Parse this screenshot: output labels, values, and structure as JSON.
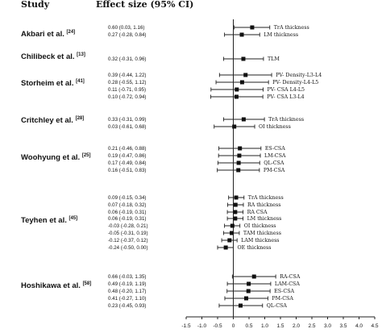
{
  "chart_data": {
    "type": "forest",
    "header_study": "Study",
    "header_effect": "Effect size (95% CI)",
    "xlim": [
      -1.5,
      4.5
    ],
    "ticks": [
      -1.5,
      -1,
      -0.5,
      0,
      0.5,
      1,
      1.5,
      2,
      2.5,
      3,
      3.5,
      4,
      4.5
    ],
    "tick_labels": [
      "-1.5",
      "-1.0",
      "-0.5",
      "0",
      "0.5",
      "1.0",
      "1.5",
      "2.0",
      "2.5",
      "3.0",
      "3.5",
      "4.0",
      "4.5"
    ],
    "studies": [
      {
        "name": "Akbari et al.",
        "ref": "[24]",
        "rows": [
          {
            "effect": 0.6,
            "low": 0.03,
            "high": 1.16,
            "text": "0.60 (0.03, 1.16)",
            "label": "TrA thickness"
          },
          {
            "effect": 0.27,
            "low": -0.28,
            "high": 0.84,
            "text": "0.27 (-0.28, 0.84)",
            "label": "LM thickness"
          }
        ]
      },
      {
        "name": "Chilibeck et al.",
        "ref": "[13]",
        "rows": [
          {
            "effect": 0.32,
            "low": -0.31,
            "high": 0.96,
            "text": "0.32 (-0.31, 0.96)",
            "label": "TLM"
          }
        ]
      },
      {
        "name": "Storheim et al.",
        "ref": "[41]",
        "rows": [
          {
            "effect": 0.39,
            "low": -0.44,
            "high": 1.22,
            "text": "0.39 (-0.44, 1.22)",
            "label": "PV- Density-L3-L4"
          },
          {
            "effect": 0.28,
            "low": -0.55,
            "high": 1.12,
            "text": "0.28 (-0.55, 1.12)",
            "label": "PV- Density-L4-L5"
          },
          {
            "effect": 0.11,
            "low": -0.71,
            "high": 0.95,
            "text": "0.11 (-0.71, 0.95)",
            "label": "PV- CSA L4-L5"
          },
          {
            "effect": 0.1,
            "low": -0.72,
            "high": 0.94,
            "text": "0.10 (-0.72, 0.94)",
            "label": "PV- CSA L3-L4"
          }
        ]
      },
      {
        "name": "Critchley et al.",
        "ref": "[28]",
        "rows": [
          {
            "effect": 0.33,
            "low": -0.31,
            "high": 0.99,
            "text": "0.33 (-0.31, 0.99)",
            "label": "TrA thickness"
          },
          {
            "effect": 0.03,
            "low": -0.61,
            "high": 0.68,
            "text": "0.03 (-0.61, 0.68)",
            "label": "OI thickness"
          }
        ]
      },
      {
        "name": "Woohyung et al.",
        "ref": "[25]",
        "rows": [
          {
            "effect": 0.21,
            "low": -0.46,
            "high": 0.88,
            "text": "0.21 (-0.46, 0.88)",
            "label": "ES-CSA"
          },
          {
            "effect": 0.19,
            "low": -0.47,
            "high": 0.86,
            "text": "0.19 (-0.47, 0.86)",
            "label": "LM-CSA"
          },
          {
            "effect": 0.17,
            "low": -0.49,
            "high": 0.84,
            "text": "0.17 (-0.49, 0.84)",
            "label": "QL-CSA"
          },
          {
            "effect": 0.16,
            "low": -0.51,
            "high": 0.83,
            "text": "0.16 (-0.51, 0.83)",
            "label": "PM-CSA"
          }
        ]
      },
      {
        "name": "Teyhen et al.",
        "ref": "[45]",
        "rows": [
          {
            "effect": 0.09,
            "low": -0.15,
            "high": 0.34,
            "text": "0.09 (-0.15, 0.34)",
            "label": "TrA thickness"
          },
          {
            "effect": 0.07,
            "low": -0.18,
            "high": 0.32,
            "text": "0.07 (-0.18, 0.32)",
            "label": "RA thickness"
          },
          {
            "effect": 0.06,
            "low": -0.19,
            "high": 0.31,
            "text": "0.06 (-0.19, 0.31)",
            "label": "RA CSA"
          },
          {
            "effect": 0.06,
            "low": -0.19,
            "high": 0.31,
            "text": "0.06 (-0.19, 0.31)",
            "label": "LM thickness"
          },
          {
            "effect": -0.03,
            "low": -0.28,
            "high": 0.21,
            "text": "-0.03 (-0.28, 0.21)",
            "label": "OI thickness"
          },
          {
            "effect": -0.05,
            "low": -0.31,
            "high": 0.19,
            "text": "-0.05 (-0.31, 0.19)",
            "label": "TAM thickness"
          },
          {
            "effect": -0.12,
            "low": -0.37,
            "high": 0.12,
            "text": "-0.12 (-0.37, 0.12)",
            "label": "LAM thickness"
          },
          {
            "effect": -0.24,
            "low": -0.5,
            "high": 0.0,
            "text": "-0.24 (-0.50, 0.00)",
            "label": "OE thickness"
          }
        ]
      },
      {
        "name": "Hoshikawa et al.",
        "ref": "[58]",
        "rows": [
          {
            "effect": 0.66,
            "low": -0.03,
            "high": 1.35,
            "text": "0.66 (-0.03, 1.35)",
            "label": "RA-CSA"
          },
          {
            "effect": 0.49,
            "low": -0.19,
            "high": 1.19,
            "text": "0.49 (-0.19, 1.19)",
            "label": "LAM-CSA"
          },
          {
            "effect": 0.48,
            "low": -0.2,
            "high": 1.17,
            "text": "0.48 (-0.20, 1.17)",
            "label": "ES-CSA"
          },
          {
            "effect": 0.41,
            "low": -0.27,
            "high": 1.1,
            "text": "0.41 (-0.27, 1.10)",
            "label": "PM-CSA"
          },
          {
            "effect": 0.23,
            "low": -0.45,
            "high": 0.93,
            "text": "0.23 (-0.45, 0.93)",
            "label": "QL-CSA"
          }
        ]
      }
    ]
  }
}
